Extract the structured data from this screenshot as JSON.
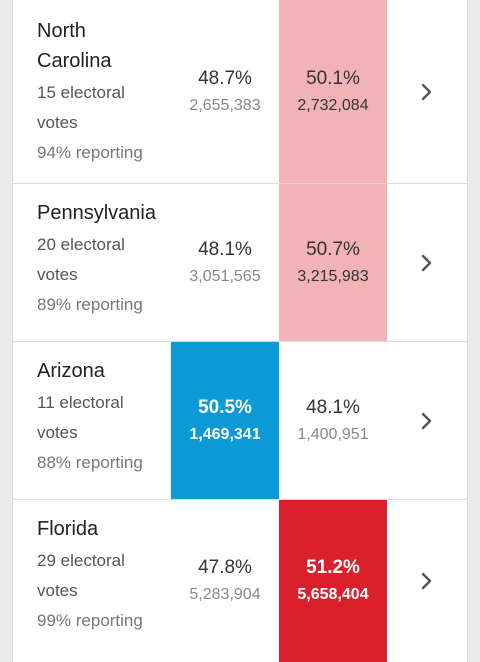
{
  "rows": [
    {
      "state": "North Carolina",
      "electoral_line1": "15 electoral",
      "electoral_line2": "votes",
      "reporting": "94% reporting",
      "dem": {
        "pct": "48.7%",
        "votes": "2,655,383"
      },
      "rep": {
        "pct": "50.1%",
        "votes": "2,732,084"
      }
    },
    {
      "state": "Pennsylvania",
      "electoral_line1": "20 electoral",
      "electoral_line2": "votes",
      "reporting": "89% reporting",
      "dem": {
        "pct": "48.1%",
        "votes": "3,051,565"
      },
      "rep": {
        "pct": "50.7%",
        "votes": "3,215,983"
      }
    },
    {
      "state": "Arizona",
      "electoral_line1": "11 electoral",
      "electoral_line2": "votes",
      "reporting": "88% reporting",
      "dem": {
        "pct": "50.5%",
        "votes": "1,469,341"
      },
      "rep": {
        "pct": "48.1%",
        "votes": "1,400,951"
      }
    },
    {
      "state": "Florida",
      "electoral_line1": "29 electoral",
      "electoral_line2": "votes",
      "reporting": "99% reporting",
      "dem": {
        "pct": "47.8%",
        "votes": "5,283,904"
      },
      "rep": {
        "pct": "51.2%",
        "votes": "5,658,404"
      }
    }
  ],
  "colors": {
    "dem_winner": "#0b9ad6",
    "rep_winner_strong": "#d9202b",
    "rep_leading_light": "#f1b3b6"
  },
  "icons": {
    "row_chevron": "chevron-right-icon"
  }
}
